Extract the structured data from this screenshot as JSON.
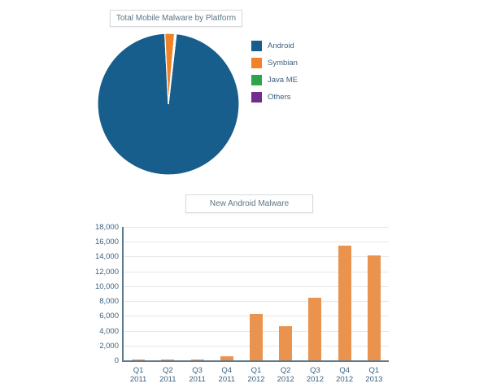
{
  "page": {
    "background": "#ffffff"
  },
  "chart_data": [
    {
      "type": "pie",
      "title": "Total Mobile Malware by Platform",
      "labels": [
        "Android",
        "Symbian",
        "Java ME",
        "Others"
      ],
      "values_percent": [
        97.4,
        2.2,
        0.2,
        0.2
      ],
      "colors": [
        "#175e8c",
        "#f08227",
        "#2fa34b",
        "#712d8d"
      ],
      "slice_stroke_color": "#ffffff",
      "start_angle_deg": 6.5,
      "legend_position": "right",
      "legend_text_color": "#3c6180",
      "title_text_color": "#5b7585"
    },
    {
      "type": "bar",
      "title": "New Android Malware",
      "categories": [
        "Q1 2011",
        "Q2 2011",
        "Q3 2011",
        "Q4 2011",
        "Q1 2012",
        "Q2 2012",
        "Q3 2012",
        "Q4 2012",
        "Q1 2013"
      ],
      "values": [
        50,
        75,
        125,
        500,
        6300,
        4650,
        8400,
        15450,
        14150
      ],
      "y_ticks": [
        "0",
        "2,000",
        "4,000",
        "6,000",
        "8,000",
        "10,000",
        "12,000",
        "14,000",
        "16,000",
        "18,000"
      ],
      "ylim": [
        0,
        18000
      ],
      "xlabel": "",
      "ylabel": "",
      "grid": true,
      "legend": false,
      "bar_color": "#e9934e",
      "axis_color": "#5d7a8c",
      "gridline_color": "#e6e6e6",
      "tick_text_color": "#3c6180"
    }
  ]
}
